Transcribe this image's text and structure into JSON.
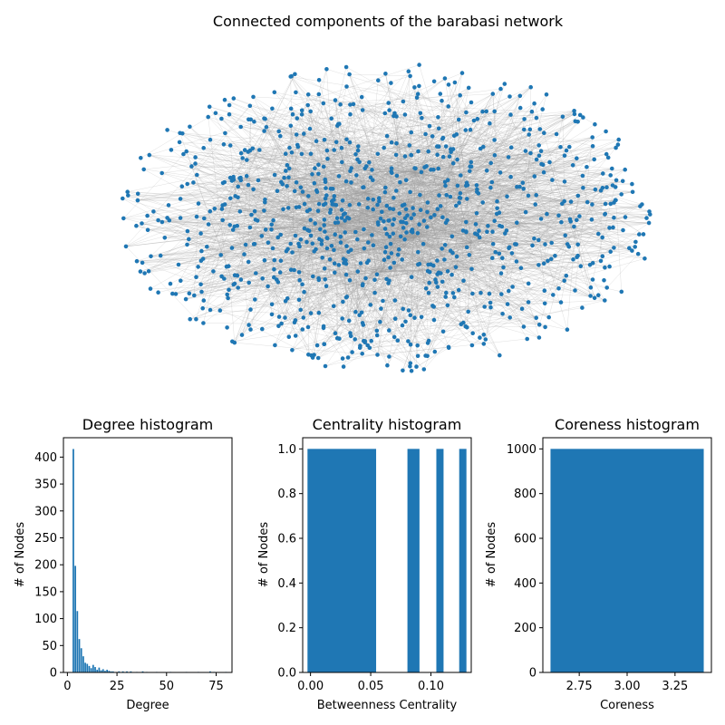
{
  "figure": {
    "title": "Connected components of the barabasi network"
  },
  "network": {
    "edge_color": "#9e9e9e",
    "node_color": "#1f77b4"
  },
  "chart_data": [
    {
      "type": "bar",
      "title": "Degree histogram",
      "xlabel": "Degree",
      "ylabel": "# of Nodes",
      "xlim": [
        -2,
        83
      ],
      "ylim": [
        0,
        436
      ],
      "xticks": [
        0,
        25,
        50,
        75
      ],
      "yticks": [
        0,
        50,
        100,
        150,
        200,
        250,
        300,
        350,
        400
      ],
      "bar_width": 0.8,
      "color": "#1f77b4",
      "x": [
        3,
        4,
        5,
        6,
        7,
        8,
        9,
        10,
        11,
        12,
        13,
        14,
        15,
        16,
        17,
        18,
        19,
        20,
        21,
        22,
        23,
        26,
        28,
        30,
        32,
        35,
        38,
        40,
        45,
        52,
        60,
        66,
        72,
        74,
        80
      ],
      "values": [
        415,
        198,
        114,
        62,
        45,
        30,
        18,
        16,
        12,
        8,
        14,
        10,
        5,
        9,
        4,
        6,
        3,
        5,
        3,
        2,
        2,
        2,
        2,
        2,
        2,
        1,
        2,
        1,
        1,
        1,
        1,
        1,
        2,
        1,
        1
      ]
    },
    {
      "type": "bar",
      "title": "Centrality histogram",
      "xlabel": "Betweenness Centrality",
      "ylabel": "# of Nodes",
      "xlim": [
        -0.0065,
        0.1335
      ],
      "ylim": [
        0,
        1.05
      ],
      "xticks": [
        0.0,
        0.05,
        0.1
      ],
      "xtick_labels": [
        "0.00",
        "0.05",
        "0.10"
      ],
      "yticks": [
        0.0,
        0.2,
        0.4,
        0.6,
        0.8,
        1.0
      ],
      "ytick_labels": [
        "0.0",
        "0.2",
        "0.4",
        "0.6",
        "0.8",
        "1.0"
      ],
      "color": "#1f77b4",
      "bars": [
        {
          "x0": -0.0025,
          "x1": 0.0545,
          "value": 1.0
        },
        {
          "x0": 0.0805,
          "x1": 0.0905,
          "value": 1.0
        },
        {
          "x0": 0.1045,
          "x1": 0.1105,
          "value": 1.0
        },
        {
          "x0": 0.1235,
          "x1": 0.1295,
          "value": 1.0
        }
      ]
    },
    {
      "type": "bar",
      "title": "Coreness histogram",
      "xlabel": "Coreness",
      "ylabel": "# of Nodes",
      "xlim": [
        2.56,
        3.44
      ],
      "ylim": [
        0,
        1050
      ],
      "xticks": [
        2.75,
        3.0,
        3.25
      ],
      "xtick_labels": [
        "2.75",
        "3.00",
        "3.25"
      ],
      "yticks": [
        0,
        200,
        400,
        600,
        800,
        1000
      ],
      "color": "#1f77b4",
      "bars": [
        {
          "x0": 2.6,
          "x1": 3.4,
          "value": 1000
        }
      ]
    }
  ]
}
